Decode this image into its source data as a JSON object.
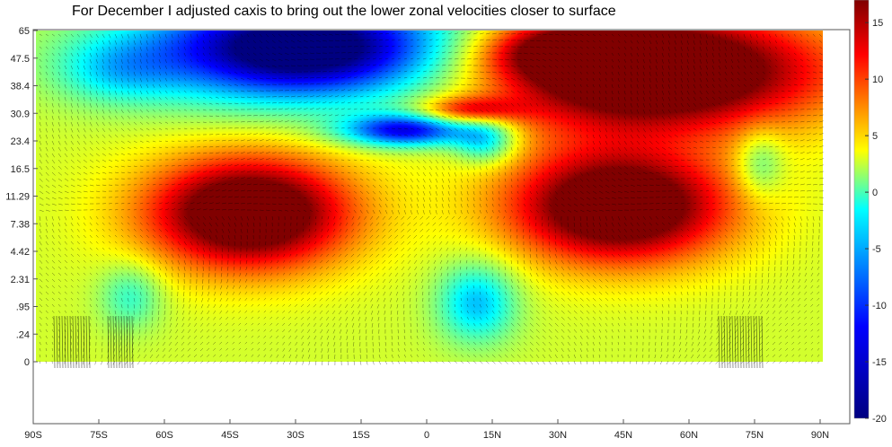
{
  "annotation": "For December I adjusted caxis to bring out the lower zonal velocities closer to surface",
  "chart_data": {
    "type": "heatmap",
    "title": "",
    "xlabel": "",
    "ylabel": "",
    "colormap": "jet",
    "clim": [
      -20,
      17
    ],
    "x_ticks": [
      "90S",
      "75S",
      "60S",
      "45S",
      "30S",
      "15S",
      "0",
      "15N",
      "30N",
      "45N",
      "60N",
      "75N",
      "90N"
    ],
    "x_values": [
      -90,
      -75,
      -60,
      -45,
      -30,
      -15,
      0,
      15,
      30,
      45,
      60,
      75,
      90
    ],
    "y_ticks": [
      "65",
      "47.5",
      "38.4",
      "30.9",
      "23.4",
      "16.5",
      "11.29",
      "7.38",
      "4.42",
      "2.31",
      ".95",
      ".24",
      "0"
    ],
    "y_values": [
      65,
      47.5,
      38.4,
      30.9,
      23.4,
      16.5,
      11.29,
      7.38,
      4.42,
      2.31,
      0.95,
      0.24,
      0
    ],
    "colorbar_ticks": [
      15,
      10,
      5,
      0,
      -5,
      -10,
      -15,
      -20
    ],
    "vector_overlay": true,
    "features": [
      {
        "lat": -30,
        "level": 47.5,
        "value": -19,
        "desc": "easterly jet (blue) upper SH"
      },
      {
        "lat": 40,
        "level": 47.5,
        "value": 17,
        "desc": "westerly jet (dark red) upper NH"
      },
      {
        "lat": -40,
        "level": 11.29,
        "value": 17,
        "desc": "SH westerly jet core"
      },
      {
        "lat": 35,
        "level": 11.29,
        "value": 17,
        "desc": "NH westerly jet core"
      },
      {
        "lat": 10,
        "level": 0.95,
        "value": -8,
        "desc": "near-surface easterlies (cyan)"
      }
    ]
  },
  "colors": {
    "axis": "#555555",
    "background": "#ffffff"
  }
}
